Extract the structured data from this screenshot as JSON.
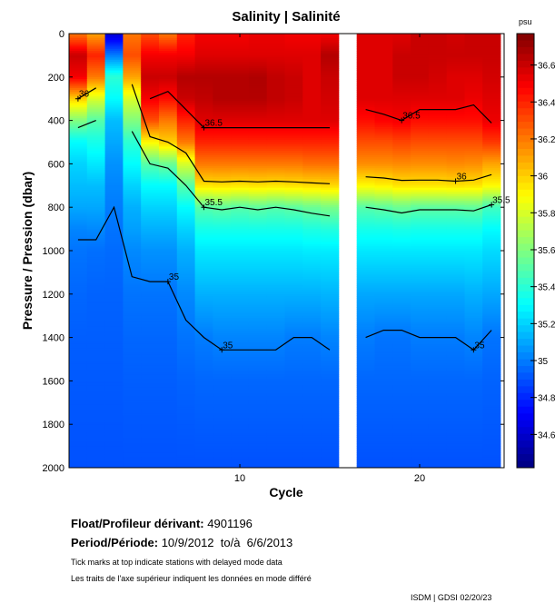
{
  "chart_data": {
    "type": "heatmap",
    "title": "Salinity | Salinité",
    "xlabel": "Cycle",
    "ylabel": "Pressure / Pression (dbar)",
    "xlim": [
      0.5,
      24.7
    ],
    "ylim": [
      2000,
      0
    ],
    "xticks": [
      10,
      20
    ],
    "yticks": [
      0,
      200,
      400,
      600,
      800,
      1000,
      1200,
      1400,
      1600,
      1800,
      2000
    ],
    "colorbar": {
      "label": "psu",
      "range": [
        34.42,
        36.77
      ],
      "ticks": [
        "36.6",
        "36.4",
        "36.2",
        "36",
        "35.8",
        "35.6",
        "35.4",
        "35.2",
        "35",
        "34.8",
        "34.6"
      ],
      "colormap": "jet"
    },
    "depths": [
      0,
      100,
      200,
      300,
      400,
      500,
      600,
      700,
      800,
      900,
      1000,
      1200,
      1400,
      1600,
      2000
    ],
    "profiles": [
      {
        "cycle": 1,
        "values": [
          36.2,
          36.6,
          36.5,
          36.0,
          35.6,
          35.3,
          35.2,
          35.15,
          35.1,
          35.02,
          34.98,
          34.95,
          34.93,
          34.92,
          34.9
        ]
      },
      {
        "cycle": 2,
        "values": [
          36.1,
          36.4,
          36.2,
          35.8,
          35.5,
          35.35,
          35.25,
          35.15,
          35.1,
          35.03,
          34.97,
          34.94,
          34.93,
          34.92,
          34.9
        ]
      },
      {
        "cycle": 3,
        "values": [
          34.6,
          35.0,
          35.4,
          35.3,
          35.15,
          35.1,
          35.05,
          35.02,
          35.0,
          34.98,
          34.96,
          34.94,
          34.93,
          34.92,
          34.9
        ]
      },
      {
        "cycle": 4,
        "values": [
          36.2,
          36.3,
          36.1,
          35.8,
          35.6,
          35.4,
          35.3,
          35.2,
          35.12,
          35.08,
          35.03,
          34.98,
          34.95,
          34.93,
          34.9
        ]
      },
      {
        "cycle": 5,
        "values": [
          36.3,
          36.5,
          36.6,
          36.5,
          36.3,
          35.9,
          35.5,
          35.3,
          35.2,
          35.12,
          35.05,
          34.98,
          34.95,
          34.93,
          34.9
        ]
      },
      {
        "cycle": 6,
        "values": [
          36.2,
          36.5,
          36.6,
          36.45,
          36.2,
          36.0,
          35.55,
          35.3,
          35.2,
          35.12,
          35.05,
          34.98,
          34.95,
          34.93,
          34.9
        ]
      },
      {
        "cycle": 7,
        "values": [
          36.4,
          36.5,
          36.65,
          36.6,
          36.4,
          36.2,
          35.8,
          35.5,
          35.3,
          35.2,
          35.12,
          35.03,
          34.98,
          34.94,
          34.9
        ]
      },
      {
        "cycle": 8,
        "values": [
          36.5,
          36.55,
          36.65,
          36.62,
          36.55,
          36.4,
          36.2,
          35.95,
          35.5,
          35.35,
          35.25,
          35.12,
          35.0,
          34.95,
          34.9
        ]
      },
      {
        "cycle": 9,
        "values": [
          36.5,
          36.55,
          36.65,
          36.65,
          36.55,
          36.4,
          36.2,
          35.96,
          35.52,
          35.35,
          35.25,
          35.12,
          35.02,
          34.95,
          34.9
        ]
      },
      {
        "cycle": 10,
        "values": [
          36.5,
          36.55,
          36.65,
          36.65,
          36.55,
          36.4,
          36.2,
          35.95,
          35.5,
          35.35,
          35.25,
          35.12,
          35.02,
          34.95,
          34.9
        ]
      },
      {
        "cycle": 11,
        "values": [
          36.52,
          36.55,
          36.66,
          36.65,
          36.55,
          36.4,
          36.2,
          35.96,
          35.52,
          35.35,
          35.25,
          35.12,
          35.02,
          34.95,
          34.9
        ]
      },
      {
        "cycle": 12,
        "values": [
          36.52,
          36.55,
          36.62,
          36.62,
          36.55,
          36.4,
          36.2,
          35.95,
          35.5,
          35.35,
          35.25,
          35.12,
          35.02,
          34.95,
          34.9
        ]
      },
      {
        "cycle": 13,
        "values": [
          36.5,
          36.55,
          36.6,
          36.6,
          36.55,
          36.4,
          36.2,
          35.96,
          35.52,
          35.35,
          35.25,
          35.12,
          35.0,
          34.95,
          34.9
        ]
      },
      {
        "cycle": 14,
        "values": [
          36.5,
          36.55,
          36.55,
          36.55,
          36.55,
          36.4,
          36.22,
          35.97,
          35.55,
          35.37,
          35.26,
          35.12,
          35.0,
          34.95,
          34.9
        ]
      },
      {
        "cycle": 15,
        "values": [
          36.5,
          36.65,
          36.6,
          36.58,
          36.55,
          36.4,
          36.22,
          35.98,
          35.58,
          35.38,
          35.26,
          35.13,
          35.02,
          34.95,
          34.9
        ]
      },
      {
        "cycle": 17,
        "values": [
          36.55,
          36.55,
          36.55,
          36.55,
          36.45,
          36.3,
          36.15,
          35.9,
          35.5,
          35.35,
          35.25,
          35.1,
          35.0,
          34.95,
          34.9
        ]
      },
      {
        "cycle": 18,
        "values": [
          36.55,
          36.55,
          36.55,
          36.55,
          36.48,
          36.3,
          36.15,
          35.92,
          35.52,
          35.35,
          35.25,
          35.1,
          34.98,
          34.95,
          34.9
        ]
      },
      {
        "cycle": 19,
        "values": [
          36.55,
          36.6,
          36.6,
          36.55,
          36.5,
          36.32,
          36.16,
          35.95,
          35.55,
          35.36,
          35.25,
          35.1,
          34.98,
          34.95,
          34.9
        ]
      },
      {
        "cycle": 20,
        "values": [
          36.6,
          36.6,
          36.6,
          36.55,
          36.45,
          36.3,
          36.15,
          35.95,
          35.52,
          35.35,
          35.25,
          35.1,
          35.0,
          34.95,
          34.9
        ]
      },
      {
        "cycle": 21,
        "values": [
          36.6,
          36.6,
          36.58,
          36.55,
          36.45,
          36.3,
          36.15,
          35.95,
          35.52,
          35.35,
          35.25,
          35.1,
          35.0,
          34.95,
          34.9
        ]
      },
      {
        "cycle": 22,
        "values": [
          36.58,
          36.6,
          36.55,
          36.55,
          36.45,
          36.3,
          36.16,
          35.96,
          35.52,
          35.35,
          35.25,
          35.1,
          35.0,
          34.95,
          34.9
        ]
      },
      {
        "cycle": 23,
        "values": [
          36.6,
          36.6,
          36.55,
          36.52,
          36.45,
          36.3,
          36.15,
          35.95,
          35.53,
          35.35,
          35.25,
          35.12,
          35.02,
          34.95,
          34.9
        ]
      },
      {
        "cycle": 24,
        "values": [
          36.6,
          36.6,
          36.58,
          36.55,
          36.52,
          36.35,
          36.1,
          35.9,
          35.45,
          35.3,
          35.22,
          35.1,
          34.98,
          34.94,
          34.9
        ]
      }
    ],
    "contour_levels": [
      36.5,
      36,
      35.5,
      35
    ],
    "contour_labels": [
      {
        "text": "36",
        "cycle": 1
      },
      {
        "text": "36",
        "cycle": 3
      },
      {
        "text": "36.5",
        "cycle": 8
      },
      {
        "text": "35.5",
        "cycle": 8
      },
      {
        "text": "35",
        "cycle": 6
      },
      {
        "text": "35",
        "cycle": 9
      },
      {
        "text": "36.5",
        "cycle": 19
      },
      {
        "text": "36",
        "cycle": 22
      },
      {
        "text": "35.5",
        "cycle": 24
      },
      {
        "text": "35",
        "cycle": 23
      }
    ]
  },
  "info": {
    "float_label": "Float/Profileur dérivant:",
    "float_id": "4901196",
    "period_label": "Period/Période:",
    "period_value": "10/9/2012  to/à  6/6/2013",
    "note_en": "Tick marks at top indicate stations with delayed mode data",
    "note_fr": "Les traits de l'axe supérieur indiquent les données en mode différé",
    "credit": "ISDM | GDSI 02/20/23"
  }
}
